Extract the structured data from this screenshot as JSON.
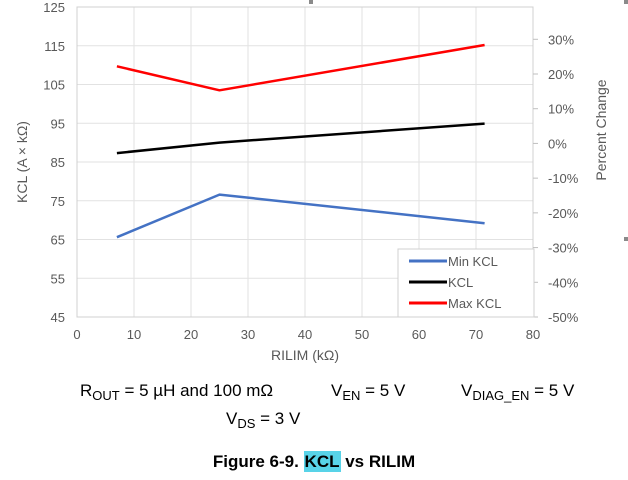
{
  "chart_data": {
    "type": "line",
    "title": "Figure 6-9. KCL vs RILIM",
    "xlabel": "RILIM (kΩ)",
    "ylabel": "KCL (A × kΩ)",
    "y2label": "Percent Change",
    "xlim": [
      0,
      80
    ],
    "ylim": [
      45,
      125
    ],
    "y2lim": [
      -50,
      39.3
    ],
    "x_ticks": [
      "0",
      "10",
      "20",
      "30",
      "40",
      "50",
      "60",
      "70",
      "80"
    ],
    "y_ticks": [
      "45",
      "55",
      "65",
      "75",
      "85",
      "95",
      "105",
      "115",
      "125"
    ],
    "y2_ticks": [
      "-50%",
      "-40%",
      "-30%",
      "-20%",
      "-10%",
      "0%",
      "10%",
      "20%",
      "30%"
    ],
    "grid": true,
    "legend_position": "bottom-right",
    "series": [
      {
        "name": "Min KCL",
        "color": "#4472c4",
        "x": [
          7,
          25,
          71.5
        ],
        "y": [
          65.6,
          76.6,
          69.2
        ]
      },
      {
        "name": "KCL",
        "color": "#000000",
        "x": [
          7,
          25,
          71.5
        ],
        "y": [
          87.3,
          90,
          94.9
        ]
      },
      {
        "name": "Max KCL",
        "color": "#ff0000",
        "x": [
          7,
          25,
          71.5
        ],
        "y": [
          109.7,
          103.5,
          115.2
        ]
      }
    ]
  },
  "conditions": {
    "rout_main": "R",
    "rout_sub": "OUT",
    "rout_value": " = 5 µH and 100 mΩ",
    "ven_main": "V",
    "ven_sub": "EN",
    "ven_value": " = 5 V",
    "vdiag_main": "V",
    "vdiag_sub": "DIAG_EN",
    "vdiag_value": " = 5 V",
    "vds_main": "V",
    "vds_sub": "DS",
    "vds_value": " = 3 V"
  },
  "figure": {
    "prefix": "Figure 6-9. ",
    "highlight": "KCL",
    "suffix": " vs RILIM",
    "highlight_color": "#58d3e8"
  }
}
